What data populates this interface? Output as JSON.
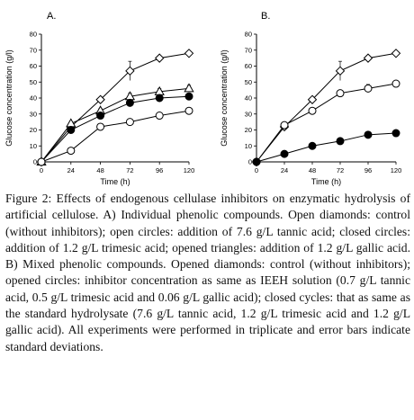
{
  "chart_data": [
    {
      "type": "line",
      "panel_label": "A.",
      "xlabel": "Time (h)",
      "ylabel": "Glucose concentration (g/l)",
      "x": [
        0,
        24,
        48,
        72,
        96,
        120
      ],
      "xlim": [
        0,
        120
      ],
      "ylim": [
        0,
        80
      ],
      "xticks": [
        0,
        24,
        48,
        72,
        96,
        120
      ],
      "yticks": [
        0,
        10,
        20,
        30,
        40,
        50,
        60,
        70,
        80
      ],
      "grid": false,
      "series": [
        {
          "marker": "open-diamond",
          "values": [
            0,
            22,
            39,
            57,
            65,
            68
          ],
          "errors": [
            0,
            1,
            1.5,
            6,
            1.5,
            1.5
          ]
        },
        {
          "marker": "open-triangle",
          "values": [
            0,
            24,
            32,
            41,
            44,
            46
          ],
          "errors": [
            0,
            1,
            1.5,
            2,
            2,
            2
          ]
        },
        {
          "marker": "closed-circle",
          "values": [
            0,
            20,
            29,
            37,
            40,
            41
          ],
          "errors": [
            0,
            1,
            1.5,
            1.5,
            1.5,
            1.5
          ]
        },
        {
          "marker": "open-circle",
          "values": [
            0,
            7,
            22,
            25,
            29,
            32
          ],
          "errors": [
            0,
            0.5,
            1,
            1,
            1,
            1
          ]
        }
      ]
    },
    {
      "type": "line",
      "panel_label": "B.",
      "xlabel": "Time (h)",
      "ylabel": "Glucose concentration (g/l)",
      "x": [
        0,
        24,
        48,
        72,
        96,
        120
      ],
      "xlim": [
        0,
        120
      ],
      "ylim": [
        0,
        80
      ],
      "xticks": [
        0,
        24,
        48,
        72,
        96,
        120
      ],
      "yticks": [
        0,
        10,
        20,
        30,
        40,
        50,
        60,
        70,
        80
      ],
      "grid": false,
      "series": [
        {
          "marker": "open-diamond",
          "values": [
            0,
            22,
            39,
            57,
            65,
            68
          ],
          "errors": [
            0,
            1,
            1.5,
            6,
            1.5,
            1.5
          ]
        },
        {
          "marker": "open-circle",
          "values": [
            0,
            23,
            32,
            43,
            46,
            49
          ],
          "errors": [
            0,
            1,
            1.5,
            2,
            2.5,
            2
          ]
        },
        {
          "marker": "closed-circle",
          "values": [
            0,
            5,
            10,
            13,
            17,
            18
          ],
          "errors": [
            0,
            0.5,
            0.5,
            0.5,
            0.8,
            0.5
          ]
        }
      ]
    }
  ],
  "caption": {
    "label": "Figure 2:",
    "text": "Effects of endogenous cellulase inhibitors on enzymatic hydrolysis of artificial cellulose. A) Individual phenolic compounds. Open diamonds: control (without inhibitors); open circles: addition of 7.6 g/L tannic acid; closed circles: addition of 1.2 g/L trimesic acid; opened triangles: addition of 1.2 g/L gallic acid. B) Mixed phenolic compounds. Opened diamonds: control (without inhibitors); opened circles: inhibitor concentration as same as IEEH solution (0.7 g/L tannic acid, 0.5 g/L trimesic acid and 0.06 g/L gallic acid); closed cycles: that as same as the standard hydrolysate (7.6 g/L tannic acid, 1.2 g/L trimesic acid and 1.2 g/L gallic acid). All experiments were performed in triplicate and error bars indicate standard deviations."
  }
}
